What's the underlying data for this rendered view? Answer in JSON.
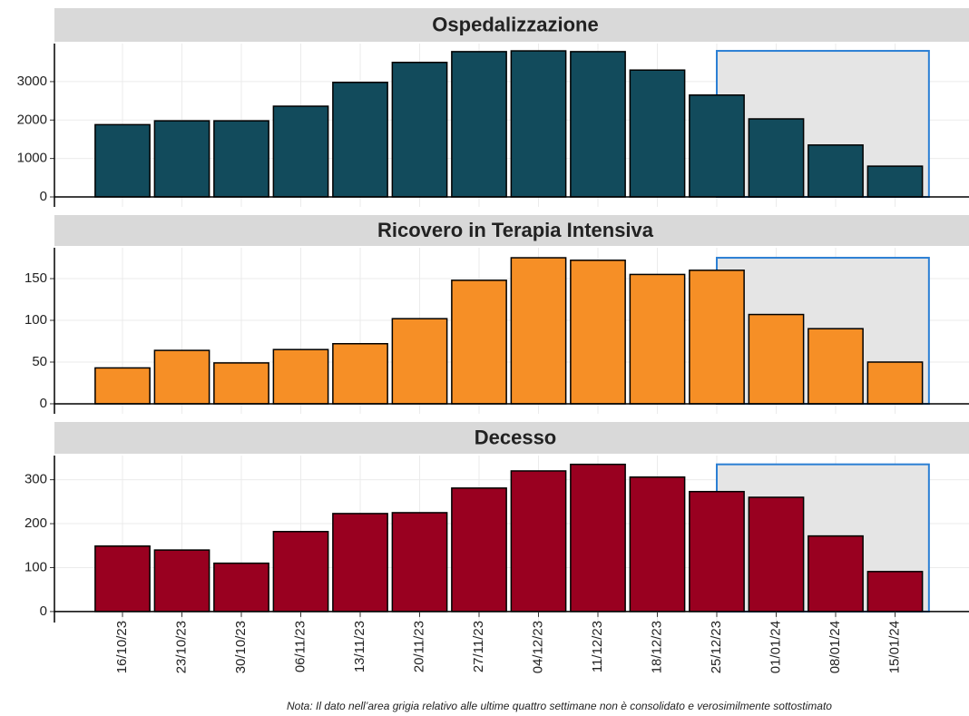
{
  "chart_data": [
    {
      "type": "bar",
      "title": "Ospedalizzazione",
      "color": "#124b5c",
      "values": [
        1880,
        1980,
        1980,
        2360,
        2980,
        3500,
        3780,
        3800,
        3780,
        3300,
        2650,
        2030,
        1350,
        800
      ],
      "ylim": [
        -260,
        3990
      ],
      "yticks": [
        0,
        1000,
        2000,
        3000
      ],
      "grid": true,
      "shaded_from": "25/12/23"
    },
    {
      "type": "bar",
      "title": "Ricovero in Terapia Intensiva",
      "color": "#f68f26",
      "values": [
        43,
        64,
        49,
        65,
        72,
        102,
        148,
        175,
        172,
        155,
        160,
        107,
        90,
        50
      ],
      "ylim": [
        -12,
        187
      ],
      "yticks": [
        0,
        50,
        100,
        150
      ],
      "grid": true,
      "shaded_from": "25/12/23"
    },
    {
      "type": "bar",
      "title": "Decesso",
      "color": "#990020",
      "categories": [
        "16/10/23",
        "23/10/23",
        "30/10/23",
        "06/11/23",
        "13/11/23",
        "20/11/23",
        "27/11/23",
        "04/12/23",
        "11/12/23",
        "18/12/23",
        "25/12/23",
        "01/01/24",
        "08/01/24",
        "15/01/24"
      ],
      "values": [
        149,
        140,
        110,
        182,
        223,
        225,
        281,
        320,
        335,
        306,
        273,
        260,
        172,
        91
      ],
      "ylim": [
        -25,
        355
      ],
      "yticks": [
        0,
        100,
        200,
        300
      ],
      "grid": true,
      "shaded_from": "25/12/23"
    }
  ],
  "note": "Nota: Il dato nell’area grigia relativo alle ultime quattro settimane non è consolidato e verosimilmente sottostimato"
}
